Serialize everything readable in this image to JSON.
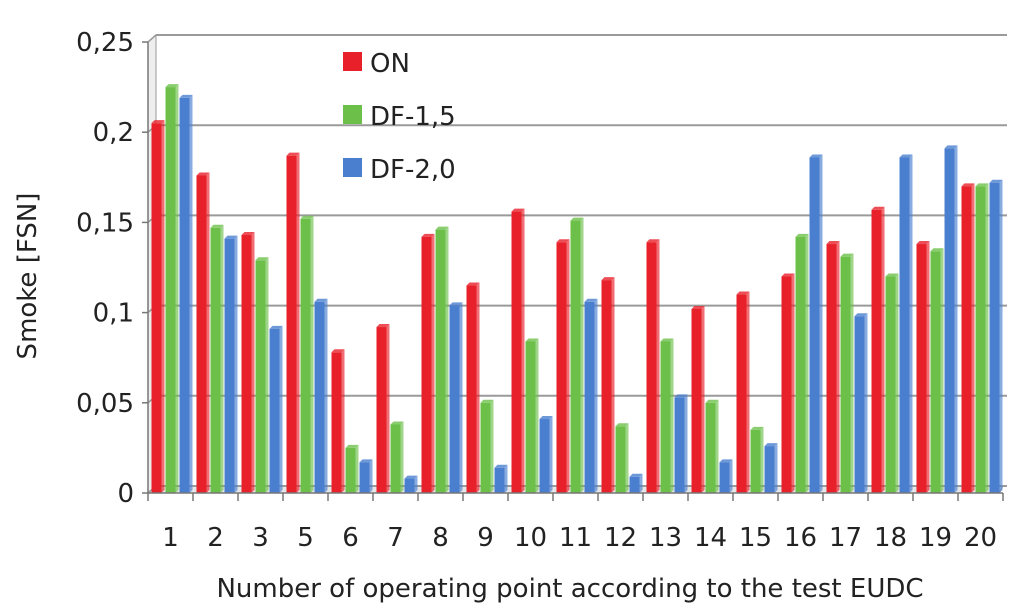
{
  "chart_data": {
    "type": "bar",
    "title": "",
    "xlabel": "Number of operating point according to the test EUDC",
    "ylabel": "Smoke   [FSN]",
    "ylim": [
      0,
      0.25
    ],
    "yticks": [
      "0",
      "0,05",
      "0,1",
      "0,15",
      "0,2",
      "0,25"
    ],
    "categories": [
      "1",
      "2",
      "3",
      "5",
      "6",
      "7",
      "8",
      "9",
      "10",
      "11",
      "12",
      "13",
      "14",
      "15",
      "16",
      "17",
      "18",
      "19",
      "20"
    ],
    "series": [
      {
        "name": "ON",
        "color": "#e8202a",
        "values": [
          0.205,
          0.176,
          0.143,
          0.187,
          0.078,
          0.092,
          0.142,
          0.115,
          0.156,
          0.139,
          0.118,
          0.139,
          0.102,
          0.11,
          0.12,
          0.138,
          0.157,
          0.138,
          0.17
        ]
      },
      {
        "name": "DF-1,5",
        "color": "#6cc04a",
        "values": [
          0.225,
          0.147,
          0.129,
          0.152,
          0.025,
          0.038,
          0.146,
          0.05,
          0.084,
          0.151,
          0.037,
          0.084,
          0.05,
          0.035,
          0.142,
          0.131,
          0.12,
          0.134,
          0.17
        ]
      },
      {
        "name": "DF-2,0",
        "color": "#4a7fd0",
        "values": [
          0.219,
          0.141,
          0.091,
          0.106,
          0.017,
          0.008,
          0.104,
          0.014,
          0.041,
          0.106,
          0.009,
          0.053,
          0.017,
          0.026,
          0.186,
          0.098,
          0.186,
          0.191,
          0.172
        ]
      }
    ],
    "grid": true,
    "legend_position": "top-left"
  }
}
